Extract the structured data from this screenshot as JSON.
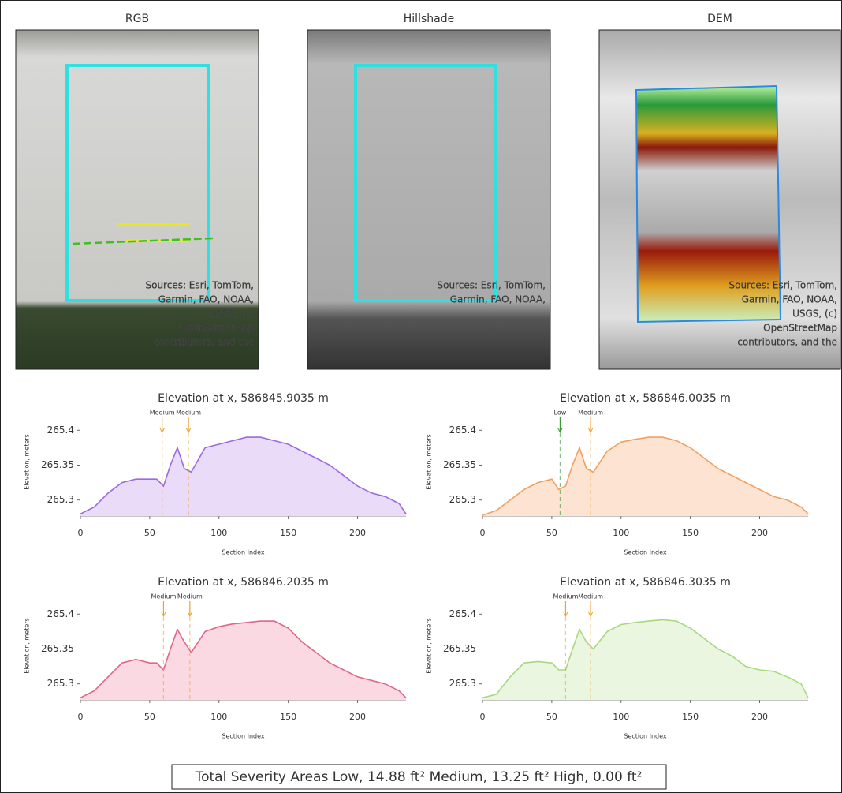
{
  "panels": [
    {
      "title": "RGB",
      "sources": [
        "Sources: Esri, TomTom,",
        "Garmin, FAO, NOAA,",
        "USGS, (c)",
        "OpenStreetMap",
        "contributors, and the"
      ]
    },
    {
      "title": "Hillshade",
      "sources": [
        "Sources: Esri, TomTom,",
        "Garmin, FAO, NOAA,"
      ]
    },
    {
      "title": "DEM",
      "sources": [
        "Sources: Esri, TomTom,",
        "Garmin, FAO, NOAA,",
        "USGS, (c)",
        "OpenStreetMap",
        "contributors, and the"
      ]
    }
  ],
  "chart_data": [
    {
      "type": "line",
      "title": "Elevation at x, 586845.9035 m",
      "x_label": "Section Index",
      "y_label": "Elevation, meters",
      "x": [
        0,
        10,
        20,
        30,
        40,
        50,
        55,
        60,
        65,
        70,
        75,
        80,
        90,
        100,
        110,
        120,
        130,
        140,
        150,
        160,
        170,
        180,
        190,
        200,
        210,
        220,
        230,
        235
      ],
      "series": [
        {
          "color": "#9b6ae0",
          "fill": "#eadcf9",
          "values": [
            265.28,
            265.29,
            265.31,
            265.325,
            265.33,
            265.33,
            265.33,
            265.32,
            265.35,
            265.375,
            265.345,
            265.34,
            265.375,
            265.38,
            265.385,
            265.39,
            265.39,
            265.385,
            265.38,
            265.37,
            265.36,
            265.35,
            265.335,
            265.32,
            265.31,
            265.305,
            265.295,
            265.28
          ]
        }
      ],
      "markers": [
        {
          "x": 59,
          "label": "Medium",
          "color": "#f0a030"
        },
        {
          "x": 78,
          "label": "Medium",
          "color": "#f0a030"
        }
      ],
      "xlim": [
        0,
        235
      ],
      "xticks": [
        0,
        50,
        100,
        150,
        200
      ],
      "ylim": [
        265.277,
        265.432
      ],
      "yticks": [
        265.3,
        265.35,
        265.4
      ]
    },
    {
      "type": "line",
      "title": "Elevation at x, 586846.0035 m",
      "x_label": "Section Index",
      "y_label": "Elevation, meters",
      "x": [
        0,
        10,
        20,
        30,
        40,
        50,
        55,
        60,
        65,
        70,
        75,
        80,
        90,
        100,
        110,
        120,
        130,
        140,
        150,
        160,
        170,
        180,
        190,
        200,
        210,
        220,
        230,
        235
      ],
      "series": [
        {
          "color": "#f0a060",
          "fill": "#fde4d2",
          "values": [
            265.278,
            265.285,
            265.3,
            265.315,
            265.325,
            265.33,
            265.315,
            265.32,
            265.35,
            265.375,
            265.345,
            265.34,
            265.37,
            265.383,
            265.387,
            265.39,
            265.39,
            265.385,
            265.375,
            265.36,
            265.345,
            265.335,
            265.325,
            265.315,
            265.305,
            265.3,
            265.29,
            265.28
          ]
        }
      ],
      "markers": [
        {
          "x": 56,
          "label": "Low",
          "color": "#3a9a3a"
        },
        {
          "x": 78,
          "label": "Medium",
          "color": "#f0a030"
        }
      ],
      "xlim": [
        0,
        235
      ],
      "xticks": [
        0,
        50,
        100,
        150,
        200
      ],
      "ylim": [
        265.277,
        265.432
      ],
      "yticks": [
        265.3,
        265.35,
        265.4
      ]
    },
    {
      "type": "line",
      "title": "Elevation at x, 586846.2035 m",
      "x_label": "Section Index",
      "y_label": "Elevation, meters",
      "x": [
        0,
        10,
        20,
        30,
        40,
        50,
        55,
        60,
        65,
        70,
        75,
        80,
        90,
        100,
        110,
        120,
        130,
        140,
        150,
        160,
        170,
        180,
        190,
        200,
        210,
        220,
        230,
        235
      ],
      "series": [
        {
          "color": "#e0668a",
          "fill": "#fbd9e2",
          "values": [
            265.28,
            265.29,
            265.31,
            265.33,
            265.335,
            265.33,
            265.33,
            265.32,
            265.35,
            265.378,
            265.36,
            265.345,
            265.375,
            265.382,
            265.386,
            265.388,
            265.39,
            265.39,
            265.38,
            265.36,
            265.345,
            265.33,
            265.32,
            265.31,
            265.305,
            265.3,
            265.29,
            265.28
          ]
        }
      ],
      "markers": [
        {
          "x": 60,
          "label": "Medium",
          "color": "#f0a030"
        },
        {
          "x": 79,
          "label": "Medium",
          "color": "#f0a030"
        }
      ],
      "xlim": [
        0,
        235
      ],
      "xticks": [
        0,
        50,
        100,
        150,
        200
      ],
      "ylim": [
        265.277,
        265.432
      ],
      "yticks": [
        265.3,
        265.35,
        265.4
      ]
    },
    {
      "type": "line",
      "title": "Elevation at x, 586846.3035 m",
      "x_label": "Section Index",
      "y_label": "Elevation, meters",
      "x": [
        0,
        10,
        20,
        30,
        40,
        50,
        55,
        60,
        65,
        70,
        75,
        80,
        90,
        100,
        110,
        120,
        130,
        140,
        150,
        160,
        170,
        180,
        190,
        200,
        210,
        220,
        230,
        235
      ],
      "series": [
        {
          "color": "#a8d880",
          "fill": "#eaf6df",
          "values": [
            265.28,
            265.285,
            265.31,
            265.33,
            265.332,
            265.33,
            265.32,
            265.32,
            265.35,
            265.378,
            265.36,
            265.35,
            265.375,
            265.385,
            265.388,
            265.39,
            265.392,
            265.39,
            265.38,
            265.365,
            265.35,
            265.34,
            265.325,
            265.32,
            265.318,
            265.31,
            265.3,
            265.28
          ]
        }
      ],
      "markers": [
        {
          "x": 60,
          "label": "Medium",
          "color": "#f0a030"
        },
        {
          "x": 78,
          "label": "Medium",
          "color": "#f0a030"
        }
      ],
      "xlim": [
        0,
        235
      ],
      "xticks": [
        0,
        50,
        100,
        150,
        200
      ],
      "ylim": [
        265.277,
        265.432
      ],
      "yticks": [
        265.3,
        265.35,
        265.4
      ]
    }
  ],
  "footer": "Total Severity Areas Low, 14.88 ft² Medium, 13.25 ft² High, 0.00 ft²"
}
